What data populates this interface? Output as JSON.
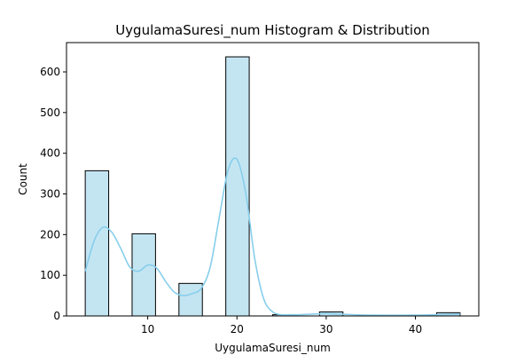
{
  "chart_data": {
    "type": "bar",
    "title": "UygulamaSuresi_num Histogram & Distribution",
    "xlabel": "UygulamaSuresi_num",
    "ylabel": "Count",
    "xlim": [
      0.9,
      47.1
    ],
    "ylim": [
      0,
      672
    ],
    "xticks": [
      10,
      20,
      30,
      40
    ],
    "yticks": [
      0,
      100,
      200,
      300,
      400,
      500,
      600
    ],
    "grid": false,
    "legend": "none",
    "colors": {
      "bar_fill": "#c3e5f2",
      "bar_edge": "#000000",
      "kde_line": "#87ceeb"
    },
    "bins": [
      {
        "x0": 3.0,
        "x1": 5.625,
        "count": 357
      },
      {
        "x0": 5.625,
        "x1": 8.25,
        "count": 0
      },
      {
        "x0": 8.25,
        "x1": 10.875,
        "count": 202
      },
      {
        "x0": 10.875,
        "x1": 13.5,
        "count": 0
      },
      {
        "x0": 13.5,
        "x1": 16.125,
        "count": 80
      },
      {
        "x0": 16.125,
        "x1": 18.75,
        "count": 0
      },
      {
        "x0": 18.75,
        "x1": 21.375,
        "count": 637
      },
      {
        "x0": 21.375,
        "x1": 24.0,
        "count": 0
      },
      {
        "x0": 24.0,
        "x1": 26.625,
        "count": 3
      },
      {
        "x0": 26.625,
        "x1": 29.25,
        "count": 0
      },
      {
        "x0": 29.25,
        "x1": 31.875,
        "count": 10
      },
      {
        "x0": 31.875,
        "x1": 34.5,
        "count": 0
      },
      {
        "x0": 34.5,
        "x1": 37.125,
        "count": 0
      },
      {
        "x0": 37.125,
        "x1": 39.75,
        "count": 0
      },
      {
        "x0": 39.75,
        "x1": 42.375,
        "count": 0
      },
      {
        "x0": 42.375,
        "x1": 45.0,
        "count": 8
      }
    ],
    "kde_curve": {
      "x": [
        3,
        4,
        5,
        6,
        7,
        8,
        9,
        10,
        11,
        12,
        13,
        14,
        15,
        16,
        17,
        18,
        19,
        20,
        21,
        22,
        23,
        24,
        25,
        26,
        27,
        28,
        29,
        30,
        31,
        32,
        35,
        40,
        44,
        45
      ],
      "y": [
        110,
        185,
        218,
        205,
        165,
        120,
        110,
        125,
        118,
        85,
        58,
        50,
        55,
        68,
        120,
        240,
        358,
        385,
        300,
        140,
        42,
        10,
        3,
        3,
        3,
        4,
        5,
        6,
        5,
        4,
        2,
        2,
        4,
        5
      ]
    }
  }
}
